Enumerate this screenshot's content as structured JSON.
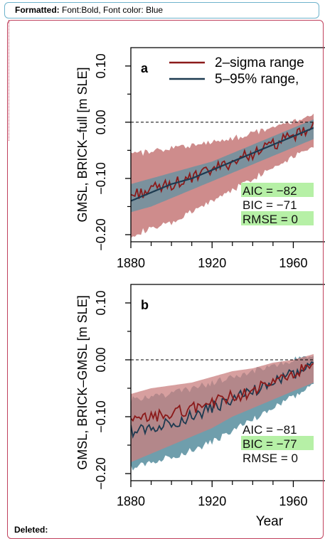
{
  "annotations": {
    "formatted_label": "Formatted:",
    "formatted_text": "Font:Bold, Font color: Blue",
    "deleted_label": "Deleted:"
  },
  "colors": {
    "red_line": "#8b1a1a",
    "red_band": "#c97f7f",
    "blue_line": "#1d3a50",
    "blue_band": "#5f93a3",
    "highlight": "#b6f0a6"
  },
  "chart_data": [
    {
      "type": "line",
      "panel_label": "a",
      "ylabel": "GMSL, BRICK–full [m SLE]",
      "xlabel": "",
      "xlim": [
        1880,
        1970
      ],
      "ylim": [
        -0.2,
        0.12
      ],
      "x_ticks": [
        "1880",
        "1920",
        "1960"
      ],
      "y_ticks": [
        "−0.20",
        "−0.10",
        "0.00",
        "0.10"
      ],
      "reference_line": 0.0,
      "legend": [
        "2–sigma range",
        "5–95% range,"
      ],
      "stats": [
        "AIC = −82",
        "BIC = −71",
        "RMSE = 0"
      ],
      "highlighted_stats": [
        0,
        2
      ],
      "series": [
        {
          "name": "2–sigma range",
          "x": [
            1880,
            1890,
            1900,
            1910,
            1920,
            1930,
            1940,
            1950,
            1960,
            1970
          ],
          "values": [
            -0.13,
            -0.12,
            -0.11,
            -0.1,
            -0.085,
            -0.07,
            -0.055,
            -0.04,
            -0.025,
            -0.01
          ],
          "band": [
            [
              -0.2,
              -0.06
            ],
            [
              -0.19,
              -0.05
            ],
            [
              -0.18,
              -0.045
            ],
            [
              -0.16,
              -0.04
            ],
            [
              -0.14,
              -0.035
            ],
            [
              -0.12,
              -0.03
            ],
            [
              -0.1,
              -0.02
            ],
            [
              -0.08,
              -0.01
            ],
            [
              -0.06,
              0.0
            ],
            [
              -0.04,
              0.01
            ]
          ]
        },
        {
          "name": "5–95% range,",
          "x": [
            1880,
            1890,
            1900,
            1910,
            1920,
            1930,
            1940,
            1950,
            1960,
            1970
          ],
          "values": [
            -0.14,
            -0.125,
            -0.11,
            -0.1,
            -0.085,
            -0.07,
            -0.055,
            -0.04,
            -0.025,
            -0.01
          ],
          "band": [
            [
              -0.16,
              -0.11
            ],
            [
              -0.15,
              -0.1
            ],
            [
              -0.135,
              -0.09
            ],
            [
              -0.12,
              -0.08
            ],
            [
              -0.105,
              -0.07
            ],
            [
              -0.09,
              -0.055
            ],
            [
              -0.075,
              -0.04
            ],
            [
              -0.06,
              -0.025
            ],
            [
              -0.045,
              -0.01
            ],
            [
              -0.03,
              0.005
            ]
          ]
        }
      ]
    },
    {
      "type": "line",
      "panel_label": "b",
      "ylabel": "GMSL, BRICK–GMSL [m SLE]",
      "xlabel": "Year",
      "xlim": [
        1880,
        1970
      ],
      "ylim": [
        -0.2,
        0.12
      ],
      "x_ticks": [
        "1880",
        "1920",
        "1960"
      ],
      "y_ticks": [
        "−0.20",
        "−0.10",
        "0.00",
        "0.10"
      ],
      "reference_line": 0.0,
      "legend": [],
      "stats": [
        "AIC = −81",
        "BIC = −77",
        "RMSE = 0"
      ],
      "highlighted_stats": [
        1
      ],
      "series": [
        {
          "name": "",
          "x": [
            1880,
            1890,
            1900,
            1910,
            1920,
            1930,
            1940,
            1950,
            1960,
            1970
          ],
          "values": [
            -0.125,
            -0.12,
            -0.11,
            -0.1,
            -0.085,
            -0.07,
            -0.055,
            -0.04,
            -0.025,
            -0.01
          ],
          "band": [
            [
              -0.19,
              -0.07
            ],
            [
              -0.18,
              -0.065
            ],
            [
              -0.17,
              -0.06
            ],
            [
              -0.16,
              -0.05
            ],
            [
              -0.145,
              -0.04
            ],
            [
              -0.125,
              -0.03
            ],
            [
              -0.105,
              -0.02
            ],
            [
              -0.085,
              -0.01
            ],
            [
              -0.065,
              0.0
            ],
            [
              -0.045,
              0.01
            ]
          ]
        },
        {
          "name": "",
          "x": [
            1880,
            1890,
            1900,
            1910,
            1920,
            1930,
            1940,
            1950,
            1960,
            1970
          ],
          "values": [
            -0.11,
            -0.1,
            -0.095,
            -0.085,
            -0.075,
            -0.065,
            -0.055,
            -0.04,
            -0.025,
            -0.01
          ],
          "band": [
            [
              -0.18,
              -0.06
            ],
            [
              -0.165,
              -0.05
            ],
            [
              -0.15,
              -0.045
            ],
            [
              -0.135,
              -0.04
            ],
            [
              -0.12,
              -0.03
            ],
            [
              -0.1,
              -0.02
            ],
            [
              -0.085,
              -0.015
            ],
            [
              -0.07,
              -0.005
            ],
            [
              -0.055,
              0.0
            ],
            [
              -0.04,
              0.01
            ]
          ]
        }
      ]
    }
  ]
}
